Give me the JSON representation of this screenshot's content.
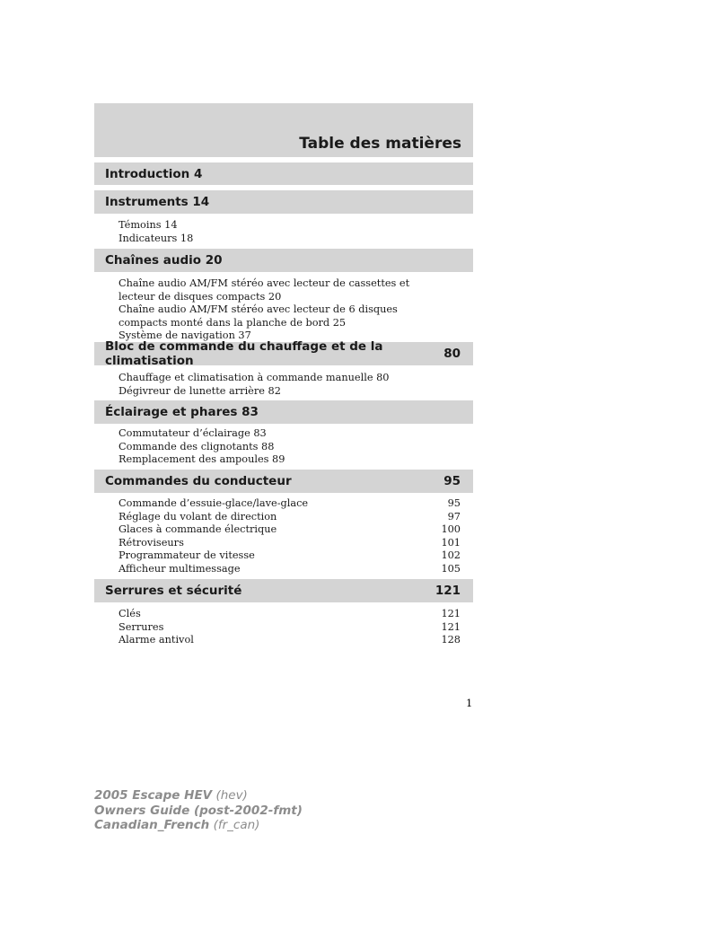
{
  "title": "Table des matières",
  "sections": [
    {
      "label": "Introduction 4",
      "page": "",
      "items": []
    },
    {
      "label": "Instruments 14",
      "page": "",
      "items": [
        {
          "text": "Témoins 14",
          "page": ""
        },
        {
          "text": "Indicateurs 18",
          "page": ""
        }
      ]
    },
    {
      "label": "Chaînes audio 20",
      "page": "",
      "items": [
        {
          "text": "Chaîne audio AM/FM stéréo avec lecteur de cassettes et",
          "page": ""
        },
        {
          "text": "lecteur de disques compacts 20",
          "page": ""
        },
        {
          "text": "Chaîne audio AM/FM stéréo avec lecteur de 6 disques",
          "page": ""
        },
        {
          "text": "compacts monté dans la planche de bord 25",
          "page": ""
        },
        {
          "text": "Système de navigation 37",
          "page": ""
        }
      ]
    },
    {
      "label": "Bloc de commande du chauffage et de la climatisation",
      "page": "80",
      "items": [
        {
          "text": "Chauffage et climatisation à commande manuelle 80",
          "page": ""
        },
        {
          "text": "Dégivreur de lunette arrière 82",
          "page": ""
        }
      ]
    },
    {
      "label": "Éclairage et phares 83",
      "page": "",
      "items": [
        {
          "text": "Commutateur d’éclairage 83",
          "page": ""
        },
        {
          "text": "Commande des clignotants 88",
          "page": ""
        },
        {
          "text": "Remplacement des ampoules 89",
          "page": ""
        }
      ]
    },
    {
      "label": "Commandes du conducteur",
      "page": "95",
      "items": [
        {
          "text": "Commande d’essuie-glace/lave-glace",
          "page": "95"
        },
        {
          "text": "Réglage du volant de direction",
          "page": "97"
        },
        {
          "text": "Glaces à commande électrique",
          "page": "100"
        },
        {
          "text": "Rétroviseurs",
          "page": "101"
        },
        {
          "text": "Programmateur de vitesse",
          "page": "102"
        },
        {
          "text": "Afficheur multimessage",
          "page": "105"
        }
      ]
    },
    {
      "label": "Serrures et sécurité",
      "page": "121",
      "items": [
        {
          "text": "Clés",
          "page": "121"
        },
        {
          "text": "Serrures",
          "page": "121"
        },
        {
          "text": "Alarme antivol",
          "page": "128"
        }
      ]
    }
  ],
  "page_number": "1",
  "footer": {
    "line1_bold": "2005 Escape HEV",
    "line1_normal": "(hev)",
    "line2_bold": "Owners Guide (post-2002-fmt)",
    "line3_bold": "Canadian_French",
    "line3_normal": "(fr_can)"
  }
}
